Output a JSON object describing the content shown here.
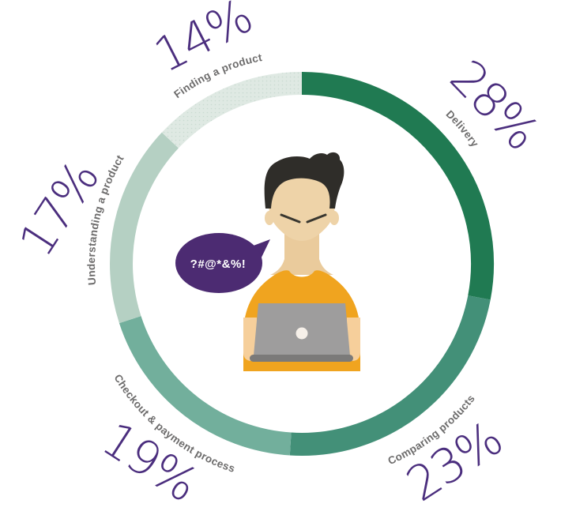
{
  "chart_data": {
    "type": "pie",
    "subtype": "donut",
    "unit": "%",
    "direction": "clockwise",
    "start": "top",
    "legend_position": "labels-around-ring",
    "title": "",
    "segments": [
      {
        "label": "Delivery",
        "value": 28,
        "pct_label": "28%",
        "color": "#207a52"
      },
      {
        "label": "Comparing products",
        "value": 23,
        "pct_label": "23%",
        "color": "#439078"
      },
      {
        "label": "Checkout & payment process",
        "value": 19,
        "pct_label": "19%",
        "color": "#72af9c"
      },
      {
        "label": "Understanding a product",
        "value": 17,
        "pct_label": "17%",
        "color": "#b5d0c3"
      },
      {
        "label": "Finding a product",
        "value": 14,
        "pct_label": "14%",
        "color": "#dfe9e3",
        "texture": "dots"
      }
    ]
  },
  "illustration": {
    "speech_bubble_text": "?#@*&%!"
  },
  "colors": {
    "percent_text": "#4b2e7e",
    "category_text": "#6d6c6c",
    "speech_bubble": "#4c2b72",
    "shirt": "#f0a41f",
    "skin": "#eed3a8",
    "hair": "#2f2d29",
    "laptop": "#9e9d9d"
  }
}
